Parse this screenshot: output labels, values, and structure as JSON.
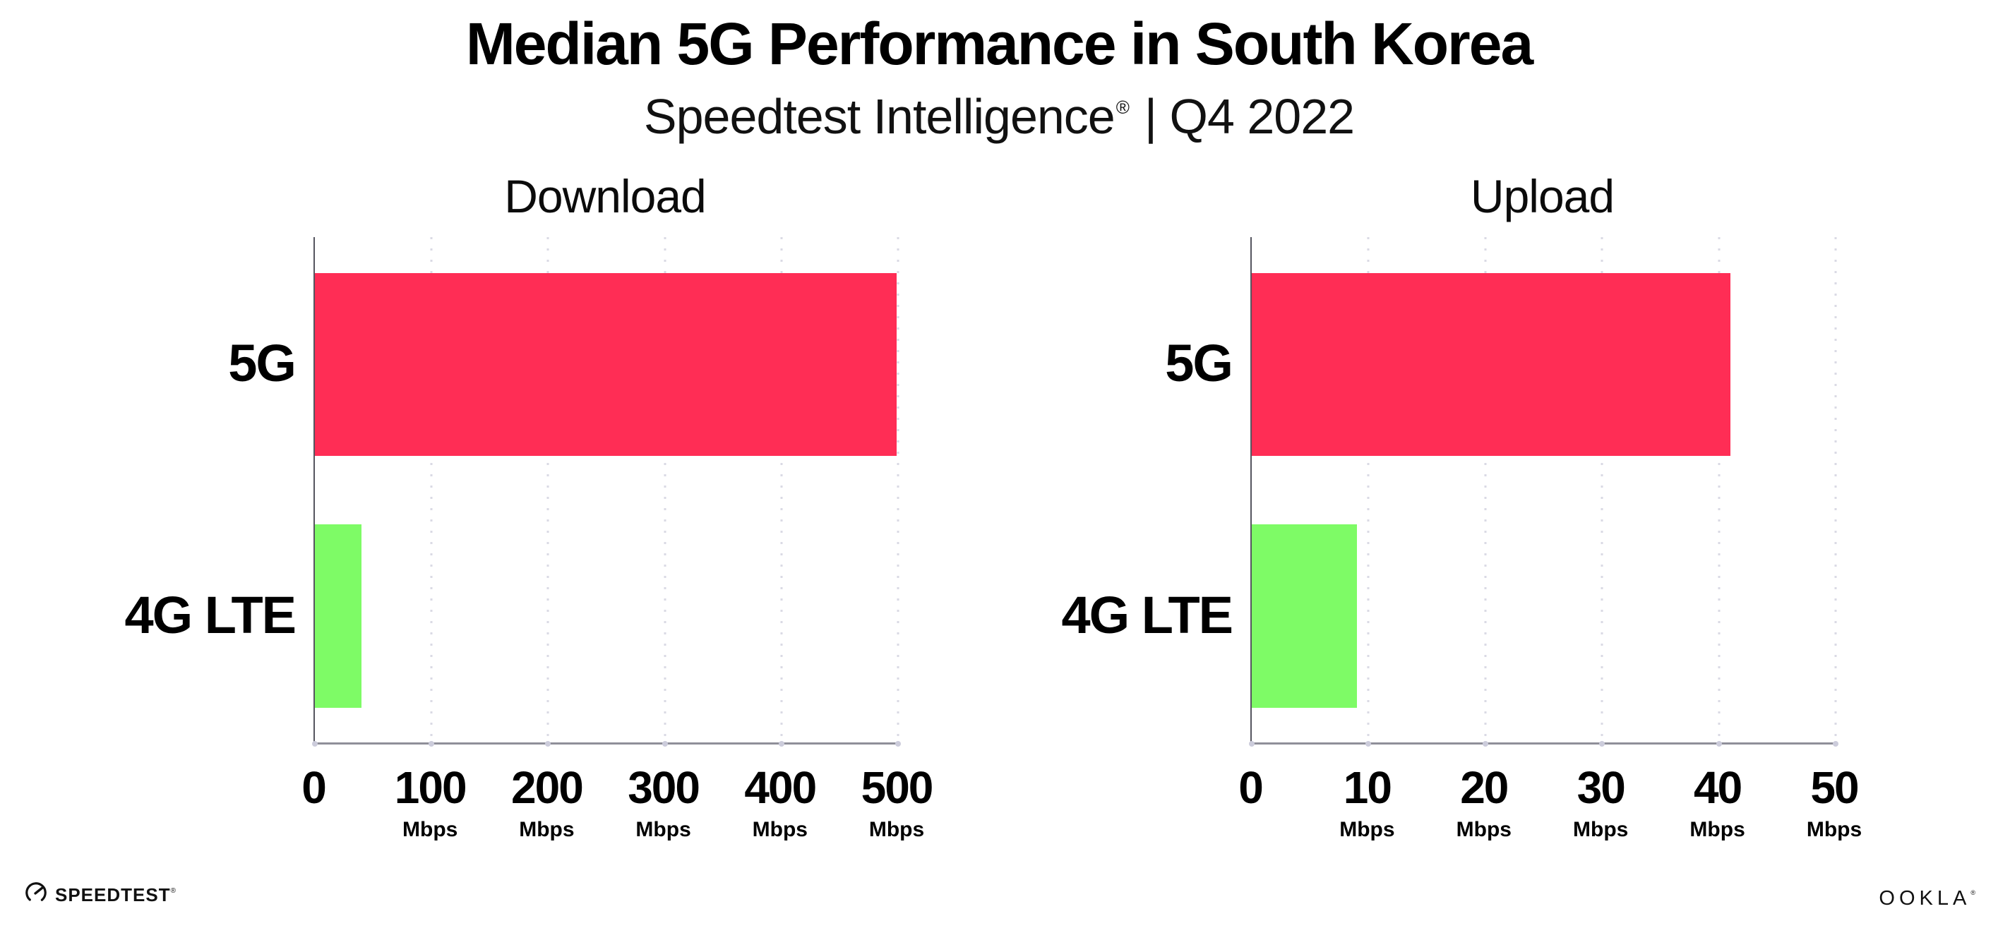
{
  "header": {
    "title": "Median 5G Performance in South Korea",
    "subtitle_brand": "Speedtest Intelligence",
    "subtitle_reg": "®",
    "subtitle_rest": "| Q4 2022"
  },
  "footer": {
    "speedtest_label": "SPEEDTEST",
    "speedtest_reg": "®",
    "ookla_label": "OOKLA",
    "ookla_reg": "®"
  },
  "colors": {
    "bar_5g": "#ff2d55",
    "bar_4g_lte": "#7efb66",
    "axis_spine": "#55555f",
    "axis_baseline": "#8f8f99",
    "gridline": "#dadae4",
    "text": "#000000"
  },
  "chart_data": [
    {
      "type": "bar",
      "orientation": "horizontal",
      "title": "Download",
      "categories": [
        "5G",
        "4G LTE"
      ],
      "values": [
        499,
        40
      ],
      "unit": "Mbps",
      "xlim": [
        0,
        500
      ],
      "xticks": [
        0,
        100,
        200,
        300,
        400,
        500
      ],
      "bar_colors": [
        "#ff2d55",
        "#7efb66"
      ],
      "xlabel": "",
      "ylabel": "",
      "grid": "dotted-vertical",
      "legend": "none"
    },
    {
      "type": "bar",
      "orientation": "horizontal",
      "title": "Upload",
      "categories": [
        "5G",
        "4G LTE"
      ],
      "values": [
        41,
        9
      ],
      "unit": "Mbps",
      "xlim": [
        0,
        50
      ],
      "xticks": [
        0,
        10,
        20,
        30,
        40,
        50
      ],
      "bar_colors": [
        "#ff2d55",
        "#7efb66"
      ],
      "xlabel": "",
      "ylabel": "",
      "grid": "dotted-vertical",
      "legend": "none"
    }
  ]
}
